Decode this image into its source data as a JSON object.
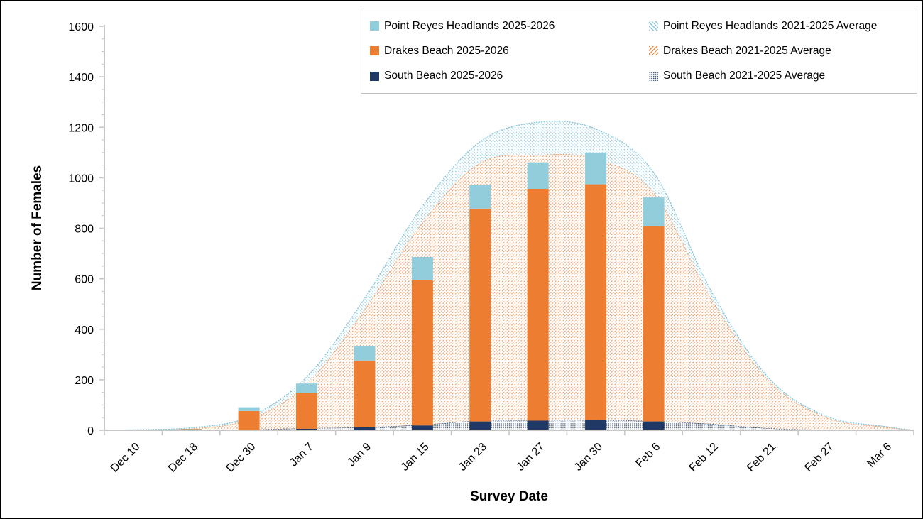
{
  "colors": {
    "point_reyes_headlands": "#92CDDC",
    "drakes_beach": "#ED7D31",
    "south_beach": "#1F3864",
    "axis_gray": "#C6C6C6",
    "legend_border": "#BFBFBF"
  },
  "legend": {
    "items": [
      {
        "label": "Point Reyes Headlands 2025-2026",
        "swatch": "solid-light-blue"
      },
      {
        "label": "Point Reyes Headlands 2021-2025 Average",
        "swatch": "light-blue-backslash-hatch"
      },
      {
        "label": "Drakes Beach 2025-2026",
        "swatch": "solid-orange"
      },
      {
        "label": "Drakes Beach 2021-2025 Average",
        "swatch": "orange-forwardslash-hatch"
      },
      {
        "label": "South Beach 2025-2026",
        "swatch": "solid-navy"
      },
      {
        "label": "South Beach 2021-2025 Average",
        "swatch": "navy-dot-grid"
      }
    ]
  },
  "chart_data": {
    "type": "bar",
    "subtype": "stacked-bars-with-stacked-average-areas",
    "title": "",
    "xlabel": "Survey Date",
    "ylabel": "Number of Females",
    "ylim": [
      0,
      1600
    ],
    "ytick_step": 200,
    "y_minor_step": 50,
    "grid": false,
    "legend_position": "top",
    "categories": [
      "Dec 10",
      "Dec 18",
      "Dec 30",
      "Jan 7",
      "Jan 9",
      "Jan 15",
      "Jan 23",
      "Jan 27",
      "Jan 30",
      "Feb 6",
      "Feb 12",
      "Feb 21",
      "Feb 27",
      "Mar 6"
    ],
    "bar_series": [
      {
        "name": "South Beach 2025-2026",
        "color": "#1F3864",
        "values": [
          0,
          1,
          2,
          6,
          12,
          19,
          35,
          38,
          40,
          35,
          0,
          0,
          0,
          0
        ]
      },
      {
        "name": "Drakes Beach 2025-2026",
        "color": "#ED7D31",
        "values": [
          1,
          4,
          74,
          143,
          264,
          575,
          843,
          918,
          934,
          773,
          0,
          0,
          0,
          0
        ]
      },
      {
        "name": "Point Reyes Headlands 2025-2026",
        "color": "#92CDDC",
        "values": [
          0,
          1,
          15,
          36,
          56,
          92,
          95,
          105,
          126,
          114,
          0,
          0,
          0,
          0
        ]
      }
    ],
    "area_series": [
      {
        "name": "South Beach 2021-2025 Average",
        "pattern": "dots",
        "color": "#30486E",
        "values": [
          0,
          1,
          3,
          8,
          12,
          22,
          38,
          40,
          40,
          36,
          25,
          8,
          2,
          1
        ]
      },
      {
        "name": "Drakes Beach 2021-2025 Average",
        "pattern": "diagonal-forward",
        "color": "#ED8C48",
        "values": [
          1,
          6,
          40,
          175,
          465,
          800,
          1020,
          1050,
          1035,
          905,
          495,
          188,
          48,
          12
        ]
      },
      {
        "name": "Point Reyes Headlands 2021-2025 Average",
        "pattern": "diagonal-back",
        "color": "#85C5DB",
        "values": [
          1,
          3,
          10,
          28,
          45,
          65,
          85,
          130,
          118,
          80,
          30,
          9,
          5,
          2
        ]
      }
    ]
  }
}
